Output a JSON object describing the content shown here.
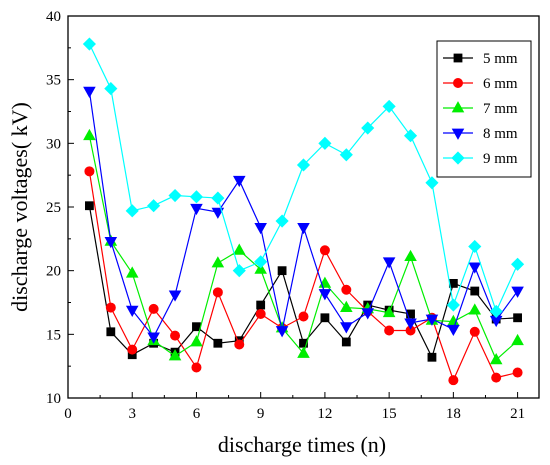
{
  "chart_data": {
    "type": "line",
    "xlabel": "discharge times (n)",
    "ylabel": "discharge voltages(  kV)",
    "xlim": [
      0,
      22
    ],
    "ylim": [
      10,
      40
    ],
    "xticks": [
      0,
      3,
      6,
      9,
      12,
      15,
      18,
      21
    ],
    "yticks": [
      10,
      15,
      20,
      25,
      30,
      35,
      40
    ],
    "grid": false,
    "legend_position": "top-right",
    "x": [
      1,
      2,
      3,
      4,
      5,
      6,
      7,
      8,
      9,
      10,
      11,
      12,
      13,
      14,
      15,
      16,
      17,
      18,
      19,
      20,
      21
    ],
    "series": [
      {
        "name": "5 mm",
        "color": "#000000",
        "marker": "square",
        "values": [
          25.1,
          15.2,
          13.4,
          14.3,
          13.6,
          15.6,
          14.3,
          14.5,
          17.3,
          20.0,
          14.3,
          16.3,
          14.4,
          17.3,
          16.9,
          16.6,
          13.2,
          19.0,
          18.4,
          16.2,
          16.3
        ]
      },
      {
        "name": "6 mm",
        "color": "#ff0000",
        "marker": "circle",
        "values": [
          27.8,
          17.1,
          13.8,
          17.0,
          14.9,
          12.4,
          18.3,
          14.2,
          16.6,
          15.5,
          16.4,
          21.6,
          18.5,
          16.8,
          15.3,
          15.3,
          16.3,
          11.4,
          15.2,
          11.6,
          12.0
        ]
      },
      {
        "name": "7 mm",
        "color": "#00ee00",
        "marker": "triangle-up",
        "values": [
          30.6,
          22.3,
          19.8,
          14.5,
          13.3,
          14.4,
          20.6,
          21.6,
          20.1,
          15.5,
          13.5,
          19.0,
          17.1,
          17.0,
          16.7,
          21.1,
          16.1,
          16.0,
          16.9,
          13.0,
          14.5
        ]
      },
      {
        "name": "8 mm",
        "color": "#0000ff",
        "marker": "triangle-down",
        "values": [
          34.1,
          22.3,
          16.9,
          14.8,
          18.1,
          24.9,
          24.6,
          27.1,
          23.4,
          15.3,
          23.4,
          18.2,
          15.6,
          16.7,
          20.7,
          15.9,
          16.2,
          15.4,
          20.3,
          16.1,
          18.4
        ]
      },
      {
        "name": "9 mm",
        "color": "#00ffff",
        "marker": "diamond",
        "values": [
          37.8,
          34.3,
          24.7,
          25.1,
          25.9,
          25.8,
          25.7,
          20.0,
          20.7,
          23.9,
          28.3,
          30.0,
          29.1,
          31.2,
          32.9,
          30.6,
          26.9,
          17.3,
          21.9,
          16.8,
          20.5
        ]
      }
    ]
  }
}
